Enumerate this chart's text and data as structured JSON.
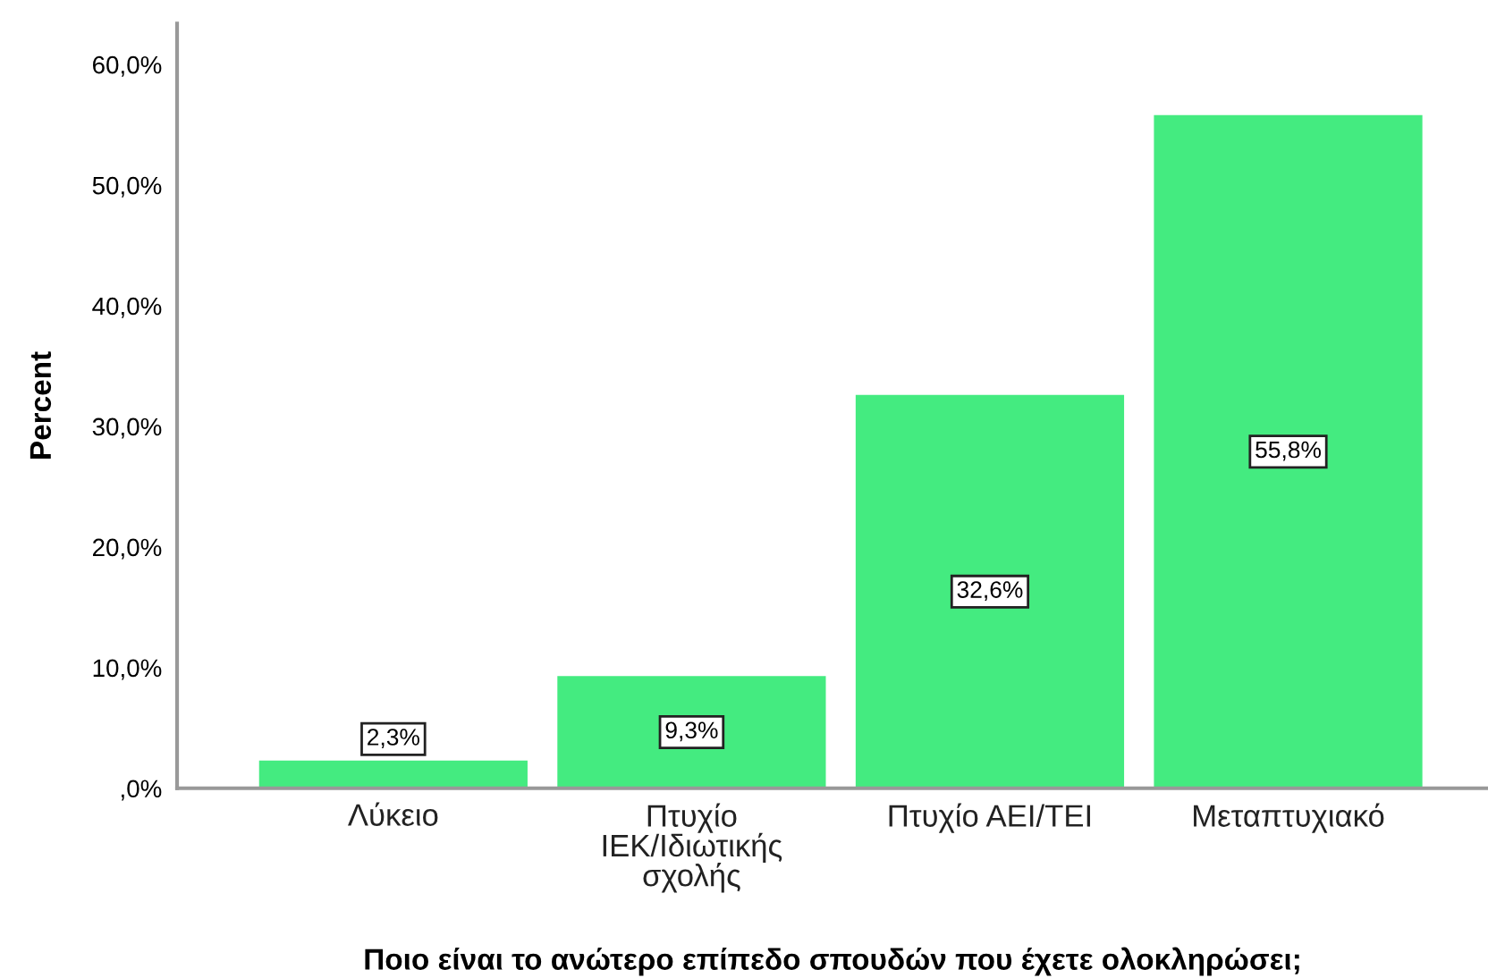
{
  "chart_data": {
    "type": "bar",
    "xlabel": "Ποιο είναι το ανώτερο επίπεδο σπουδών που έχετε ολοκληρώσει;",
    "ylabel": "Percent",
    "categories": [
      "Λύκειο",
      "Πτυχίο\nΙΕΚ/Ιδιωτικής\nσχολής",
      "Πτυχίο ΑΕΙ/ΤΕΙ",
      "Μεταπτυχιακό"
    ],
    "values": [
      2.3,
      9.3,
      32.6,
      55.8
    ],
    "value_labels": [
      "2,3%",
      "9,3%",
      "32,6%",
      "55,8%"
    ],
    "color": "#44eb80",
    "ylim": [
      0,
      63.4
    ],
    "yticks": [
      {
        "value": 0,
        "label": ",0%"
      },
      {
        "value": 10,
        "label": "10,0%"
      },
      {
        "value": 20,
        "label": "20,0%"
      },
      {
        "value": 30,
        "label": "30,0%"
      },
      {
        "value": 40,
        "label": "40,0%"
      },
      {
        "value": 50,
        "label": "50,0%"
      },
      {
        "value": 60,
        "label": "60,0%"
      }
    ],
    "grid": false,
    "legend": false
  }
}
